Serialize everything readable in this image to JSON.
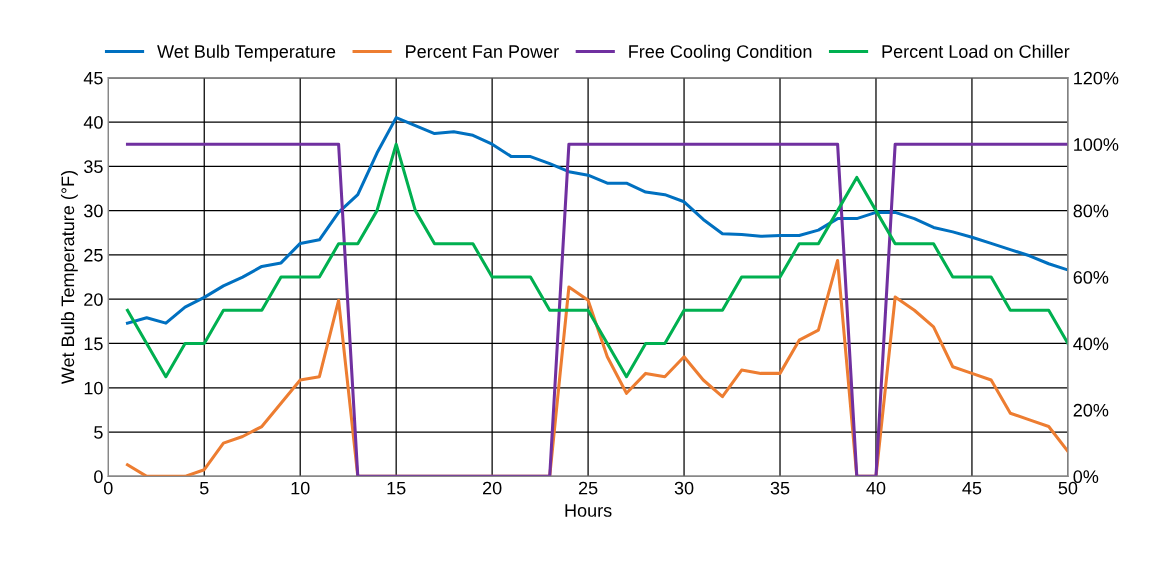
{
  "chart_data": {
    "type": "line",
    "xlabel": "Hours",
    "ylabel": "Wet Bulb Temperature (°F)",
    "x": [
      1,
      2,
      3,
      4,
      5,
      6,
      7,
      8,
      9,
      10,
      11,
      12,
      13,
      14,
      15,
      16,
      17,
      18,
      19,
      20,
      21,
      22,
      23,
      24,
      25,
      26,
      27,
      28,
      29,
      30,
      31,
      32,
      33,
      34,
      35,
      36,
      37,
      38,
      39,
      40,
      41,
      42,
      43,
      44,
      45,
      46,
      47,
      48,
      49,
      50
    ],
    "xlim": [
      0,
      50
    ],
    "xticks": [
      0,
      5,
      10,
      15,
      20,
      25,
      30,
      35,
      40,
      45,
      50
    ],
    "ylim": [
      0,
      45
    ],
    "yticks": [
      0,
      5,
      10,
      15,
      20,
      25,
      30,
      35,
      40,
      45
    ],
    "y2lim": [
      0,
      120
    ],
    "y2ticks": [
      {
        "value": 0,
        "label": "0%"
      },
      {
        "value": 20,
        "label": "20%"
      },
      {
        "value": 40,
        "label": "40%"
      },
      {
        "value": 60,
        "label": "60%"
      },
      {
        "value": 80,
        "label": "80%"
      },
      {
        "value": 100,
        "label": "100%"
      },
      {
        "value": 120,
        "label": "120%"
      }
    ],
    "grid": true,
    "legend": "top",
    "marker": "none",
    "line_style": "solid",
    "series": [
      {
        "name": "Wet Bulb Temperature",
        "color": "#0070c0",
        "values": [
          17.3,
          17.9,
          17.3,
          19.1,
          20.2,
          21.5,
          22.5,
          23.7,
          24.1,
          26.3,
          26.7,
          29.8,
          31.8,
          36.5,
          40.5,
          39.6,
          38.7,
          38.9,
          38.5,
          37.5,
          36.1,
          36.1,
          35.3,
          34.4,
          34.0,
          33.1,
          33.1,
          32.1,
          31.8,
          31.0,
          29.0,
          27.4,
          27.3,
          27.1,
          27.2,
          27.2,
          27.8,
          29.1,
          29.1,
          29.8,
          29.8,
          29.1,
          28.1,
          27.6,
          27.0,
          26.3,
          25.6,
          24.9,
          24.0,
          23.3
        ]
      },
      {
        "name": "Percent Fan Power",
        "color": "#ed7d31",
        "axis": "y2",
        "values": [
          3.5,
          0,
          0,
          0,
          2,
          10,
          12,
          15,
          22,
          29,
          30,
          53,
          0,
          0,
          0,
          0,
          0,
          0,
          0,
          0,
          0,
          0,
          0,
          57,
          53,
          36,
          25,
          31,
          30,
          36,
          29,
          24,
          32,
          31,
          31,
          41,
          44,
          65,
          0,
          0,
          54,
          50,
          45,
          33,
          31,
          29,
          19,
          17,
          15,
          7.5
        ]
      },
      {
        "name": "Free Cooling Condition",
        "color": "#7030a0",
        "axis": "y2",
        "values": [
          100,
          100,
          100,
          100,
          100,
          100,
          100,
          100,
          100,
          100,
          100,
          100,
          0,
          0,
          0,
          0,
          0,
          0,
          0,
          0,
          0,
          0,
          0,
          100,
          100,
          100,
          100,
          100,
          100,
          100,
          100,
          100,
          100,
          100,
          100,
          100,
          100,
          100,
          0,
          0,
          100,
          100,
          100,
          100,
          100,
          100,
          100,
          100,
          100,
          100
        ]
      },
      {
        "name": "Percent Load on Chiller",
        "color": "#00b050",
        "axis": "y2",
        "values": [
          50,
          40,
          30,
          40,
          40,
          50,
          50,
          50,
          60,
          60,
          60,
          70,
          70,
          80,
          100,
          80,
          70,
          70,
          70,
          60,
          60,
          60,
          50,
          50,
          50,
          40,
          30,
          40,
          40,
          50,
          50,
          50,
          60,
          60,
          60,
          70,
          70,
          80,
          90,
          80,
          70,
          70,
          70,
          60,
          60,
          60,
          50,
          50,
          50,
          40
        ]
      }
    ]
  }
}
